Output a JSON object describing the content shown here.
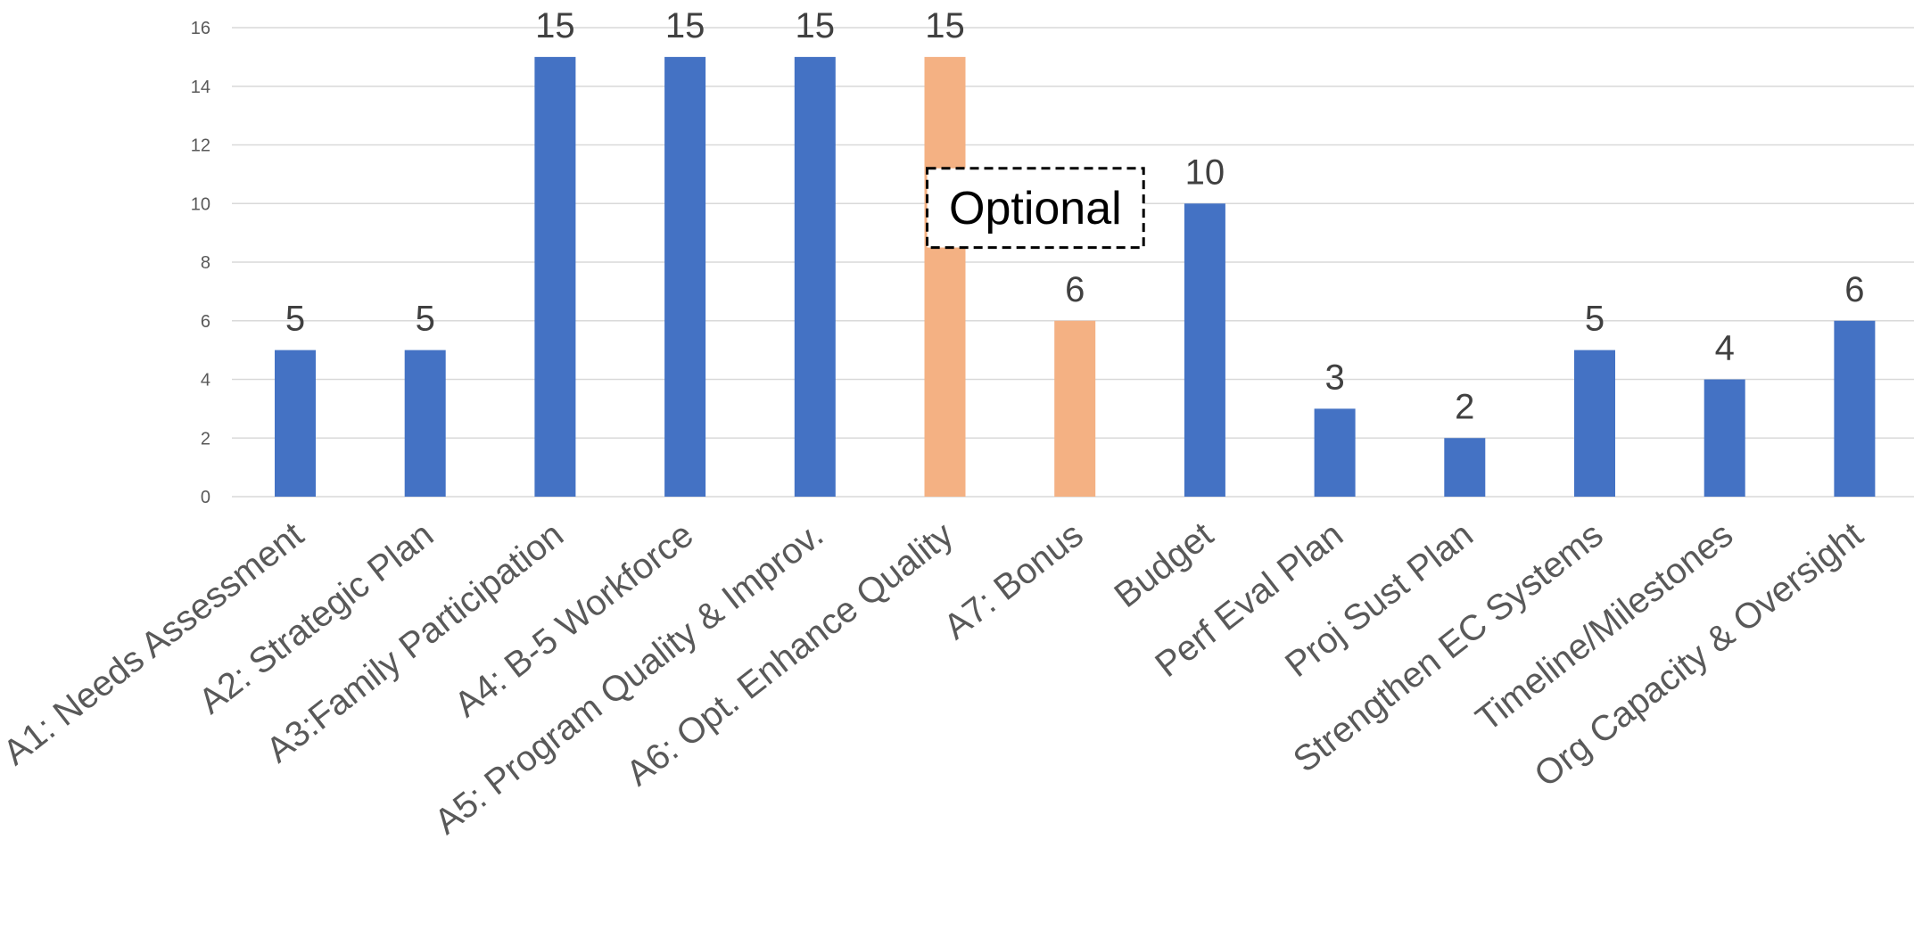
{
  "chart_data": {
    "type": "bar",
    "title": "",
    "xlabel": "",
    "ylabel": "",
    "ylim": [
      0,
      16
    ],
    "yticks": [
      0,
      2,
      4,
      6,
      8,
      10,
      12,
      14,
      16
    ],
    "grid": true,
    "legend": "none",
    "categories": [
      "A1: Needs Assessment",
      "A2: Strategic Plan",
      "A3:Family Participation",
      "A4: B-5 Workforce",
      "A5: Program Quality & Improv.",
      "A6: Opt. Enhance Quality",
      "A7: Bonus",
      "Budget",
      "Perf Eval Plan",
      "Proj Sust Plan",
      "Strengthen EC Systems",
      "Timeline/Milestones",
      "Org Capacity & Oversight"
    ],
    "values": [
      5,
      5,
      15,
      15,
      15,
      15,
      6,
      10,
      3,
      2,
      5,
      4,
      6
    ],
    "optional": [
      false,
      false,
      false,
      false,
      false,
      true,
      true,
      false,
      false,
      false,
      false,
      false,
      false
    ],
    "colors": {
      "default": "#4472C4",
      "optional": "#F4B183"
    },
    "annotation": {
      "text": "Optional",
      "style": "dashed-box",
      "spans": [
        "A6: Opt. Enhance Quality",
        "A7: Bonus"
      ]
    }
  }
}
